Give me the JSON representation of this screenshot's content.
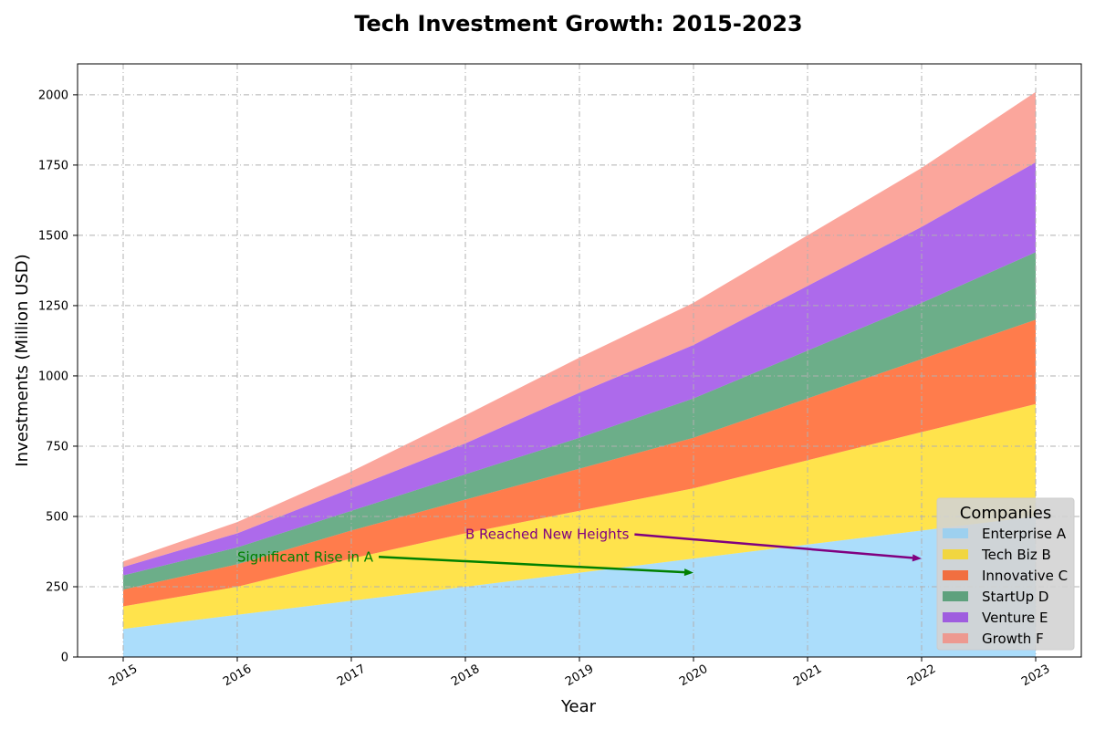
{
  "chart_data": {
    "type": "area",
    "title": "Tech Investment Growth: 2015-2023",
    "xlabel": "Year",
    "ylabel": "Investments (Million USD)",
    "x": [
      2015,
      2016,
      2017,
      2018,
      2019,
      2020,
      2021,
      2022,
      2023
    ],
    "ylim": [
      0,
      2110
    ],
    "yticks": [
      0,
      250,
      500,
      750,
      1000,
      1250,
      1500,
      1750,
      2000
    ],
    "grid": true,
    "stacked": true,
    "series": [
      {
        "name": "Enterprise A",
        "color": "#87cefa",
        "values": [
          100,
          150,
          200,
          250,
          300,
          350,
          400,
          450,
          500
        ]
      },
      {
        "name": "Tech Biz B",
        "color": "#ffd700",
        "values": [
          80,
          100,
          150,
          190,
          220,
          250,
          300,
          350,
          400
        ]
      },
      {
        "name": "Innovative C",
        "color": "#ff4500",
        "values": [
          60,
          80,
          100,
          120,
          150,
          180,
          220,
          260,
          300
        ]
      },
      {
        "name": "StartUp D",
        "color": "#2e8b57",
        "values": [
          50,
          60,
          70,
          90,
          110,
          140,
          170,
          200,
          240
        ]
      },
      {
        "name": "Venture E",
        "color": "#8a2be2",
        "values": [
          30,
          50,
          80,
          110,
          160,
          190,
          230,
          270,
          320
        ]
      },
      {
        "name": "Growth F",
        "color": "#fa8072",
        "values": [
          20,
          40,
          60,
          100,
          125,
          150,
          180,
          210,
          250
        ]
      }
    ],
    "legend": {
      "title": "Companies",
      "position": "lower-right"
    },
    "annotations": [
      {
        "text": "Significant Rise in A",
        "color": "#008000",
        "text_xy": [
          2016,
          340
        ],
        "arrow_to": [
          2020,
          300
        ]
      },
      {
        "text": "B Reached New Heights",
        "color": "#800080",
        "text_xy": [
          2018,
          420
        ],
        "arrow_to": [
          2022,
          350
        ]
      }
    ]
  }
}
